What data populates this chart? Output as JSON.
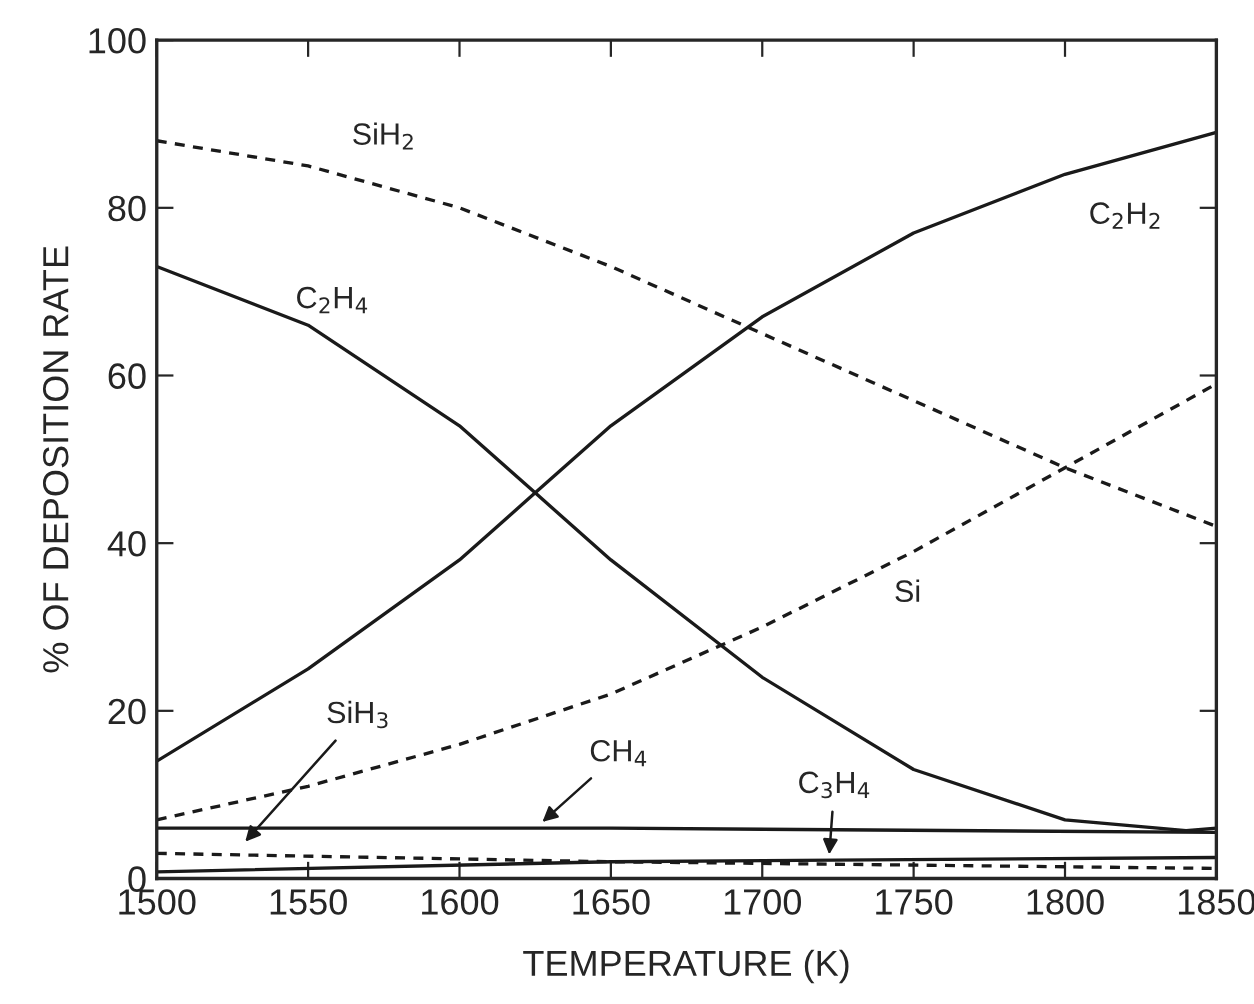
{
  "chart_data": {
    "type": "line",
    "xlabel": "TEMPERATURE (K)",
    "ylabel": "% OF DEPOSITION RATE",
    "xlim": [
      1500,
      1850
    ],
    "xticks": [
      1500,
      1550,
      1600,
      1650,
      1700,
      1750,
      1800,
      1850
    ],
    "ylim": [
      0,
      100
    ],
    "yticks": [
      0,
      20,
      40,
      60,
      80,
      100
    ],
    "grid": false,
    "marker": "none",
    "series": [
      {
        "color": "#1a1a1a",
        "line_style": "solid",
        "x": [
          1500,
          1550,
          1600,
          1625,
          1650,
          1700,
          1750,
          1800,
          1840,
          1850
        ],
        "values": [
          73,
          66,
          54,
          46,
          38,
          24,
          13,
          7,
          5.7,
          6
        ]
      },
      {
        "color": "#1a1a1a",
        "line_style": "solid",
        "x": [
          1500,
          1550,
          1600,
          1625,
          1650,
          1700,
          1750,
          1800,
          1850
        ],
        "values": [
          14,
          25,
          38,
          46,
          54,
          67,
          77,
          84,
          89
        ]
      },
      {
        "color": "#1a1a1a",
        "line_style": "dashed",
        "x": [
          1500,
          1550,
          1600,
          1650,
          1700,
          1750,
          1800,
          1850
        ],
        "values": [
          88,
          85,
          80,
          73,
          65,
          57,
          49,
          42
        ]
      },
      {
        "color": "#1a1a1a",
        "line_style": "dashed",
        "x": [
          1500,
          1550,
          1600,
          1650,
          1700,
          1750,
          1800,
          1850
        ],
        "values": [
          7,
          11,
          16,
          22,
          30,
          39,
          49,
          59
        ]
      },
      {
        "color": "#1a1a1a",
        "line_style": "solid",
        "x": [
          1500,
          1650,
          1850
        ],
        "values": [
          6,
          6,
          5.5
        ]
      },
      {
        "color": "#1a1a1a",
        "line_style": "dashed",
        "x": [
          1500,
          1650,
          1850
        ],
        "values": [
          3,
          2,
          1.2
        ]
      },
      {
        "color": "#1a1a1a",
        "line_style": "solid",
        "x": [
          1500,
          1650,
          1850
        ],
        "values": [
          0.8,
          2,
          2.5
        ]
      }
    ],
    "annotations": [
      {
        "text": "SiH$_{2}$",
        "x": 1575,
        "y": 82.5
      },
      {
        "text": "C$_{2}$H$_{4}$",
        "x": 1558,
        "y": 64
      },
      {
        "text": "C$_{2}$H$_{2}$",
        "x": 1820,
        "y": 86
      },
      {
        "text": "Si",
        "x": 1748,
        "y": 38.6
      },
      {
        "text": "SiH$_{3}$",
        "x": 1528,
        "y": 3.9
      },
      {
        "text": "CH$_{4}$",
        "x": 1626,
        "y": 6.3
      },
      {
        "text": "C$_{3}$H$_{4}$",
        "x": 1722,
        "y": 2.2
      }
    ]
  }
}
